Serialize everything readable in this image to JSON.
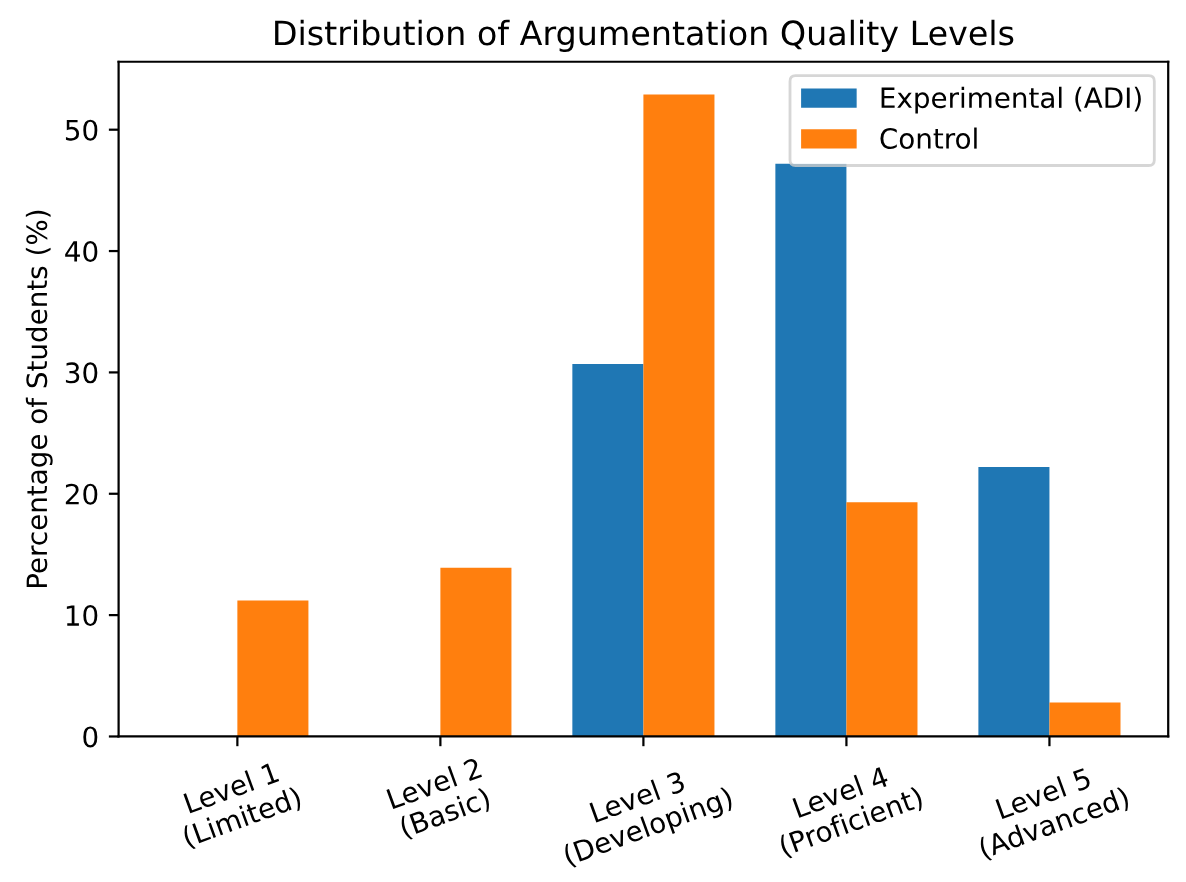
{
  "chart_data": {
    "type": "bar",
    "title": "Distribution of Argumentation Quality Levels",
    "ylabel": "Percentage of Students (%)",
    "categories": [
      "Level 1\n(Limited)",
      "Level 2\n(Basic)",
      "Level 3\n(Developing)",
      "Level 4\n(Proficient)",
      "Level 5\n(Advanced)"
    ],
    "series": [
      {
        "name": "Experimental (ADI)",
        "color": "#1f77b4",
        "values": [
          0,
          0,
          30.7,
          47.2,
          22.2
        ]
      },
      {
        "name": "Control",
        "color": "#ff7f0e",
        "values": [
          11.2,
          13.9,
          52.9,
          19.3,
          2.8
        ]
      }
    ],
    "ylim": [
      0,
      55.6
    ],
    "yticks": [
      0,
      10,
      20,
      30,
      40,
      50
    ],
    "grid": false,
    "legend": "top right"
  }
}
